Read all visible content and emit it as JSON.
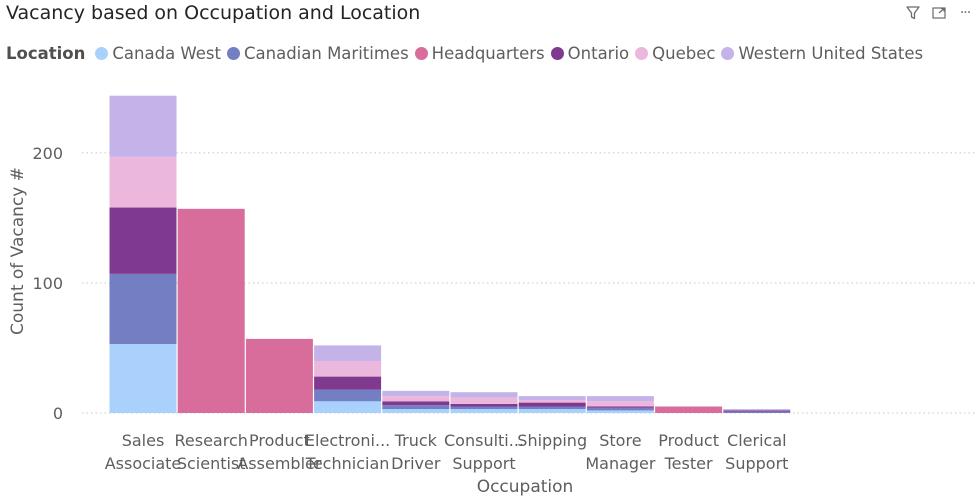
{
  "header": {
    "title": "Vacancy based on Occupation and Location",
    "icons": [
      "filter-icon",
      "focus-mode-icon",
      "more-options-icon"
    ],
    "more_label": "···"
  },
  "legend": {
    "title": "Location",
    "items": [
      {
        "label": "Canada West",
        "color": "#a9d1fb"
      },
      {
        "label": "Canadian Maritimes",
        "color": "#737ec3"
      },
      {
        "label": "Headquarters",
        "color": "#d86c9a"
      },
      {
        "label": "Ontario",
        "color": "#7f3a90"
      },
      {
        "label": "Quebec",
        "color": "#ecb7dc"
      },
      {
        "label": "Western United States",
        "color": "#c3b3e8"
      }
    ]
  },
  "chart_data": {
    "type": "bar",
    "stacked": true,
    "title": "Vacancy based on Occupation and Location",
    "xlabel": "Occupation",
    "ylabel": "Count of Vacancy #",
    "ylim": [
      0,
      240
    ],
    "yticks": [
      0,
      100,
      200
    ],
    "grid": true,
    "legend_position": "top-left",
    "categories": [
      [
        "Sales",
        "Associate"
      ],
      [
        "Research",
        "Scientist"
      ],
      [
        "Product",
        "Assembler"
      ],
      [
        "Electroni...",
        "Technician"
      ],
      [
        "Truck",
        "Driver"
      ],
      [
        "Consulti...",
        "Support"
      ],
      [
        "Shipping",
        ""
      ],
      [
        "Store",
        "Manager"
      ],
      [
        "Product",
        "Tester"
      ],
      [
        "Clerical",
        "Support"
      ]
    ],
    "series": [
      {
        "name": "Canada West",
        "color": "#a9d1fb",
        "values": [
          53,
          0,
          0,
          9,
          3,
          3,
          3,
          2,
          0,
          0
        ]
      },
      {
        "name": "Canadian Maritimes",
        "color": "#737ec3",
        "values": [
          54,
          0,
          0,
          9,
          3,
          2,
          2,
          2,
          0,
          1
        ]
      },
      {
        "name": "Headquarters",
        "color": "#d86c9a",
        "values": [
          0,
          157,
          57,
          0,
          0,
          0,
          0,
          0,
          5,
          0
        ]
      },
      {
        "name": "Ontario",
        "color": "#7f3a90",
        "values": [
          51,
          0,
          0,
          10,
          3,
          2,
          3,
          1,
          0,
          1
        ]
      },
      {
        "name": "Quebec",
        "color": "#ecb7dc",
        "values": [
          39,
          0,
          0,
          12,
          4,
          5,
          2,
          4,
          0,
          0
        ]
      },
      {
        "name": "Western United States",
        "color": "#c3b3e8",
        "values": [
          47,
          0,
          0,
          12,
          4,
          4,
          3,
          4,
          0,
          1
        ]
      }
    ]
  }
}
